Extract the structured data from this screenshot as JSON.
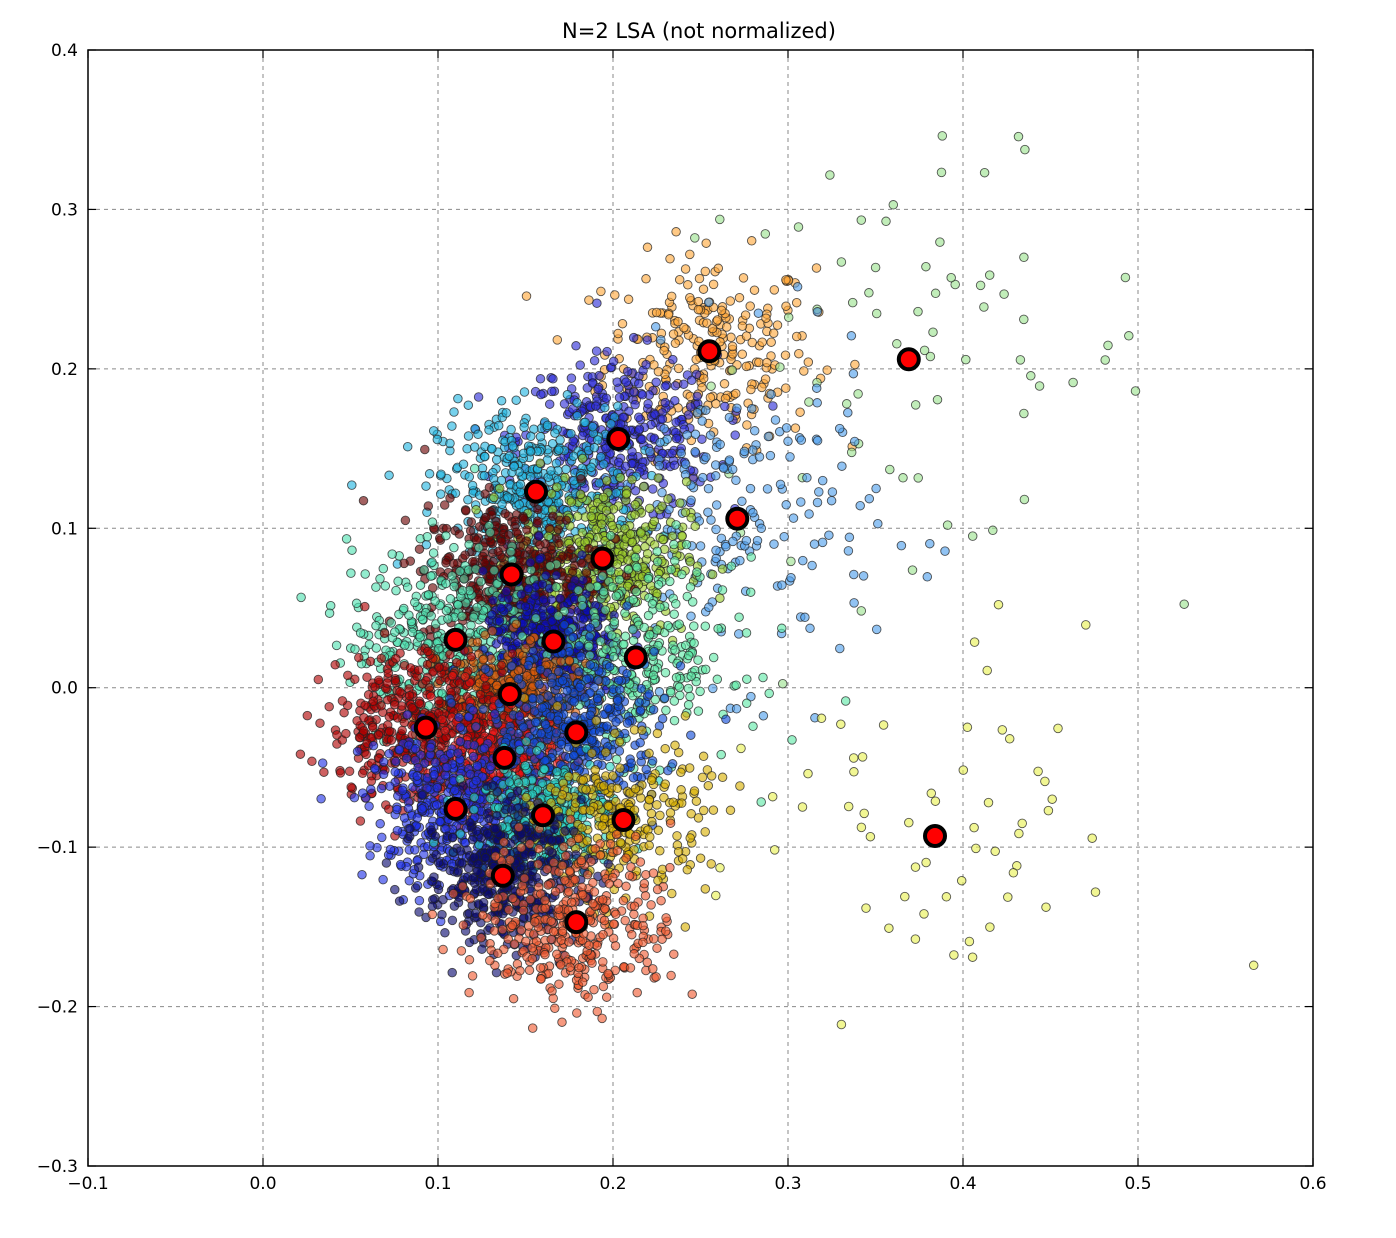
{
  "chart_data": {
    "type": "scatter",
    "title": "N=2 LSA (not normalized)",
    "xlabel": "",
    "ylabel": "",
    "xlim": [
      -0.1,
      0.6
    ],
    "ylim": [
      -0.3,
      0.4
    ],
    "xticks": [
      -0.1,
      0.0,
      0.1,
      0.2,
      0.3,
      0.4,
      0.5,
      0.6
    ],
    "xtick_labels": [
      "−0.1",
      "0.0",
      "0.1",
      "0.2",
      "0.3",
      "0.4",
      "0.5",
      "0.6"
    ],
    "yticks": [
      -0.3,
      -0.2,
      -0.1,
      0.0,
      0.1,
      0.2,
      0.3,
      0.4
    ],
    "ytick_labels": [
      "−0.3",
      "−0.2",
      "−0.1",
      "0.0",
      "0.1",
      "0.2",
      "0.3",
      "0.4"
    ],
    "grid": true,
    "legend": "none",
    "centroid_color": "#ff0000",
    "centroid_edge": "#000000",
    "clusters": [
      {
        "color": "#ffa83a",
        "center": [
          0.255,
          0.211
        ],
        "spread": [
          0.03,
          0.03
        ],
        "n": 260
      },
      {
        "color": "#9be28e",
        "center": [
          0.369,
          0.206
        ],
        "spread": [
          0.07,
          0.06
        ],
        "n": 75
      },
      {
        "color": "#2c2cd6",
        "center": [
          0.203,
          0.156
        ],
        "spread": [
          0.028,
          0.026
        ],
        "n": 380
      },
      {
        "color": "#22b5e0",
        "center": [
          0.156,
          0.123
        ],
        "spread": [
          0.028,
          0.026
        ],
        "n": 420
      },
      {
        "color": "#4d9eec",
        "center": [
          0.271,
          0.106
        ],
        "spread": [
          0.04,
          0.05
        ],
        "n": 200
      },
      {
        "color": "#9bcc2a",
        "center": [
          0.194,
          0.081
        ],
        "spread": [
          0.024,
          0.024
        ],
        "n": 420
      },
      {
        "color": "#6a0000",
        "center": [
          0.142,
          0.071
        ],
        "spread": [
          0.025,
          0.022
        ],
        "n": 420
      },
      {
        "color": "#4fe0b0",
        "center": [
          0.11,
          0.03
        ],
        "spread": [
          0.03,
          0.03
        ],
        "n": 450
      },
      {
        "color": "#0b0bb8",
        "center": [
          0.166,
          0.029
        ],
        "spread": [
          0.02,
          0.02
        ],
        "n": 380
      },
      {
        "color": "#5de8a6",
        "center": [
          0.213,
          0.019
        ],
        "spread": [
          0.028,
          0.03
        ],
        "n": 320
      },
      {
        "color": "#d85a0a",
        "center": [
          0.141,
          -0.004
        ],
        "spread": [
          0.02,
          0.016
        ],
        "n": 300
      },
      {
        "color": "#b00000",
        "center": [
          0.093,
          -0.025
        ],
        "spread": [
          0.028,
          0.025
        ],
        "n": 480
      },
      {
        "color": "#e61010",
        "center": [
          0.138,
          -0.044
        ],
        "spread": [
          0.02,
          0.018
        ],
        "n": 300
      },
      {
        "color": "#0e4ad8",
        "center": [
          0.179,
          -0.028
        ],
        "spread": [
          0.024,
          0.024
        ],
        "n": 420
      },
      {
        "color": "#1f30e6",
        "center": [
          0.11,
          -0.076
        ],
        "spread": [
          0.025,
          0.024
        ],
        "n": 420
      },
      {
        "color": "#2ad6c6",
        "center": [
          0.16,
          -0.08
        ],
        "spread": [
          0.02,
          0.018
        ],
        "n": 320
      },
      {
        "color": "#d8b000",
        "center": [
          0.206,
          -0.083
        ],
        "spread": [
          0.024,
          0.024
        ],
        "n": 260
      },
      {
        "color": "#0a0a70",
        "center": [
          0.137,
          -0.118
        ],
        "spread": [
          0.022,
          0.022
        ],
        "n": 420
      },
      {
        "color": "#f05a30",
        "center": [
          0.179,
          -0.147
        ],
        "spread": [
          0.028,
          0.026
        ],
        "n": 380
      },
      {
        "color": "#e8f050",
        "center": [
          0.384,
          -0.093
        ],
        "spread": [
          0.06,
          0.06
        ],
        "n": 60
      }
    ]
  }
}
